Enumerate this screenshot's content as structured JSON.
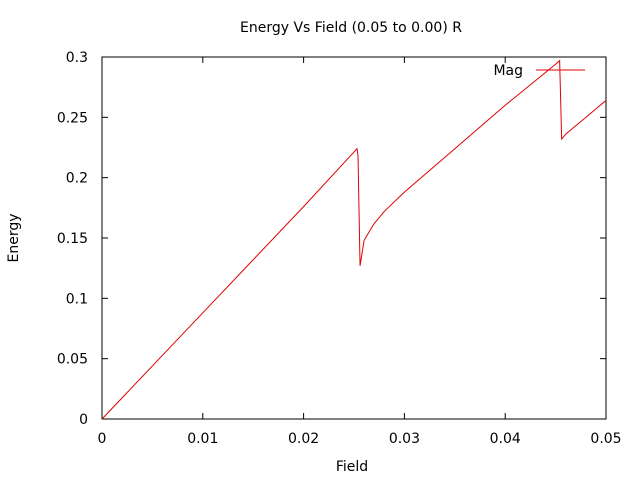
{
  "chart_data": {
    "type": "line",
    "title": "Energy Vs Field (0.05 to 0.00) R",
    "xlabel": "Field",
    "ylabel": "Energy",
    "xlim": [
      0,
      0.05
    ],
    "ylim": [
      0,
      0.3
    ],
    "xticks": [
      "0",
      "0.01",
      "0.02",
      "0.03",
      "0.04",
      "0.05"
    ],
    "yticks": [
      "0",
      "0.05",
      "0.1",
      "0.15",
      "0.2",
      "0.25",
      "0.3"
    ],
    "legend_position": "top-right",
    "grid": false,
    "series": [
      {
        "name": "Mag",
        "color": "#e00000",
        "x": [
          0,
          0.005,
          0.01,
          0.015,
          0.02,
          0.0253,
          0.0254,
          0.0255,
          0.0256,
          0.026,
          0.027,
          0.028,
          0.03,
          0.035,
          0.04,
          0.045,
          0.0454,
          0.0455,
          0.0456,
          0.046,
          0.047,
          0.048,
          0.049,
          0.05
        ],
        "y": [
          0,
          0.044,
          0.088,
          0.132,
          0.176,
          0.224,
          0.218,
          0.172,
          0.127,
          0.148,
          0.162,
          0.172,
          0.188,
          0.224,
          0.26,
          0.294,
          0.297,
          0.265,
          0.232,
          0.236,
          0.243,
          0.25,
          0.257,
          0.264
        ]
      }
    ]
  }
}
